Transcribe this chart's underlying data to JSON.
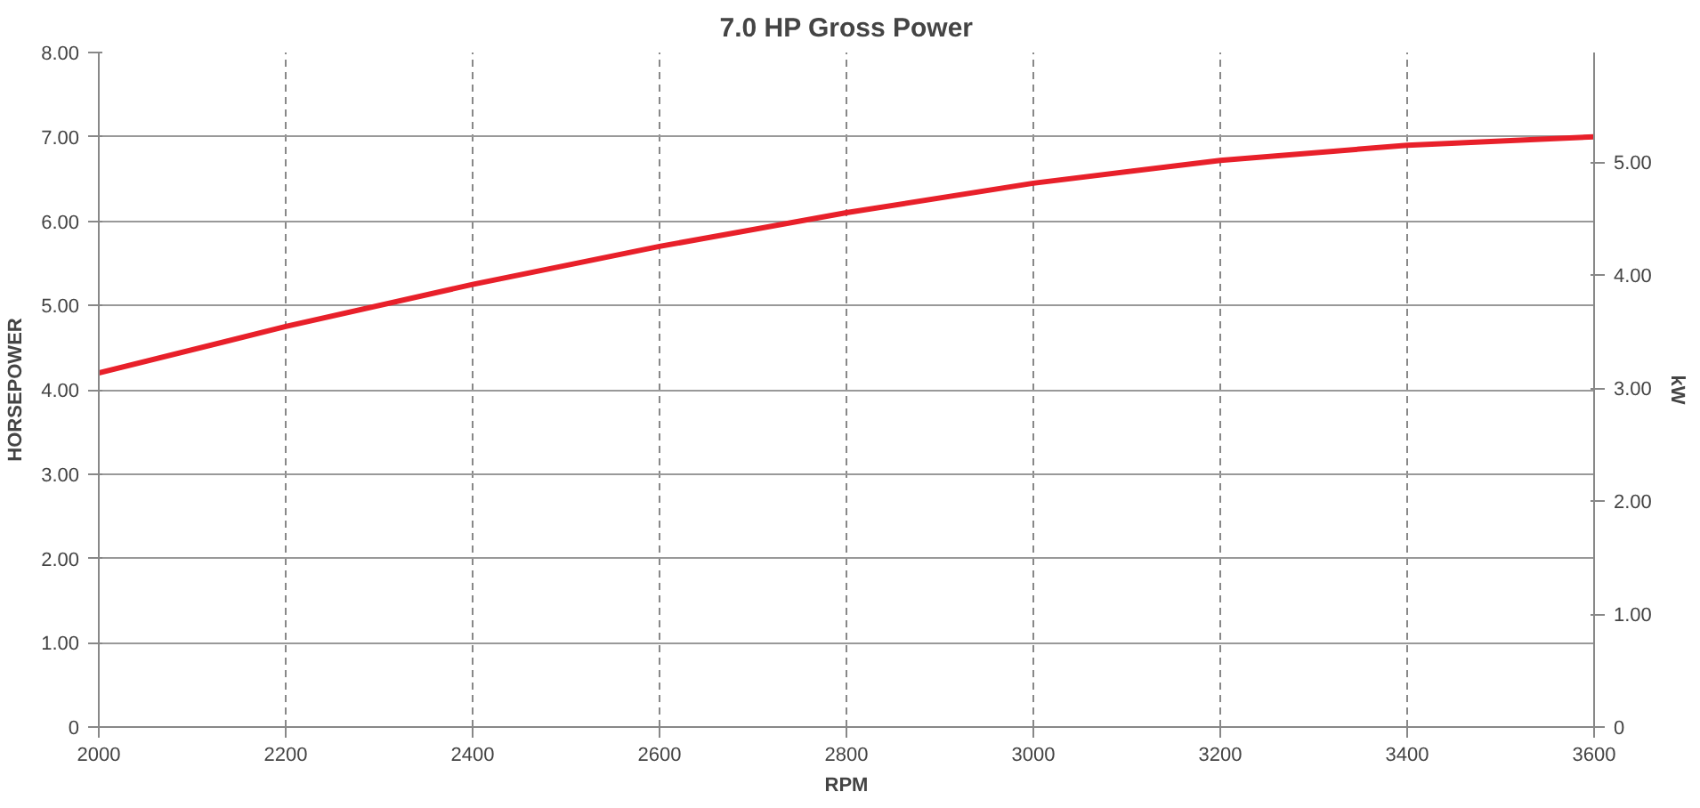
{
  "chart_data": {
    "type": "line",
    "title": "7.0 HP Gross Power",
    "xlabel": "RPM",
    "ylabel": "HORSEPOWER",
    "y2label": "kW",
    "x": [
      2000,
      2200,
      2400,
      2600,
      2800,
      3000,
      3200,
      3400,
      3600
    ],
    "series": [
      {
        "color": "#e8202a",
        "values": [
          4.2,
          4.75,
          5.25,
          5.7,
          6.1,
          6.45,
          6.72,
          6.9,
          7.0
        ]
      }
    ],
    "xlim": [
      2000,
      3600
    ],
    "xticks": [
      2000,
      2200,
      2400,
      2600,
      2800,
      3000,
      3200,
      3400,
      3600
    ],
    "ylim": [
      0,
      8
    ],
    "yticks": [
      {
        "value": 0,
        "label": "0"
      },
      {
        "value": 1,
        "label": "1.00"
      },
      {
        "value": 2,
        "label": "2.00"
      },
      {
        "value": 3,
        "label": "3.00"
      },
      {
        "value": 4,
        "label": "4.00"
      },
      {
        "value": 5,
        "label": "5.00"
      },
      {
        "value": 6,
        "label": "6.00"
      },
      {
        "value": 7,
        "label": "7.00"
      },
      {
        "value": 8,
        "label": "8.00"
      }
    ],
    "y2lim": [
      0,
      5.97
    ],
    "y2ticks": [
      {
        "value": 0,
        "label": "0"
      },
      {
        "value": 1,
        "label": "1.00"
      },
      {
        "value": 2,
        "label": "2.00"
      },
      {
        "value": 3,
        "label": "3.00"
      },
      {
        "value": 4,
        "label": "4.00"
      },
      {
        "value": 5,
        "label": "5.00"
      }
    ],
    "grid": true,
    "marker": "none",
    "line_style": "solid"
  }
}
